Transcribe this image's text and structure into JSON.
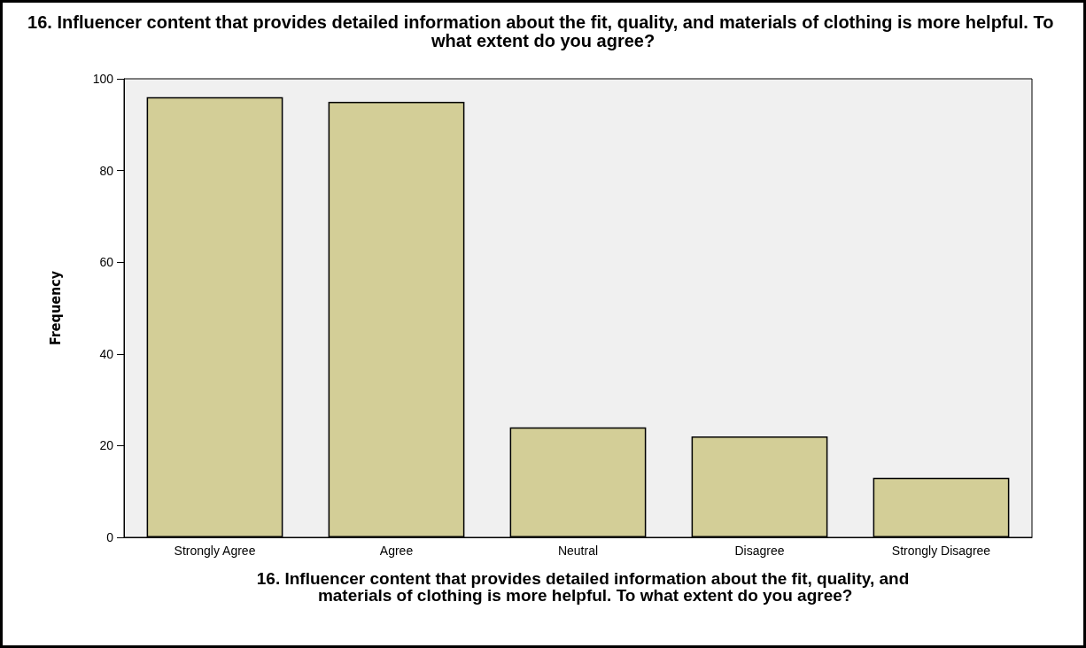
{
  "chart_data": {
    "type": "bar",
    "title": "16. Influencer content that provides detailed information about the fit, quality, and materials of clothing is more helpful. To what extent do you agree?",
    "xlabel": "16. Influencer content that provides detailed information about the fit, quality, and materials of clothing is more helpful. To what extent do you agree?",
    "ylabel": "Frequency",
    "categories": [
      "Strongly Agree",
      "Agree",
      "Neutral",
      "Disagree",
      "Strongly Disagree"
    ],
    "values": [
      96,
      95,
      24,
      22,
      13
    ],
    "color": "#d3ce97",
    "ylim": [
      0,
      100
    ],
    "yticks": [
      0,
      20,
      40,
      60,
      80,
      100
    ],
    "grid": false
  }
}
